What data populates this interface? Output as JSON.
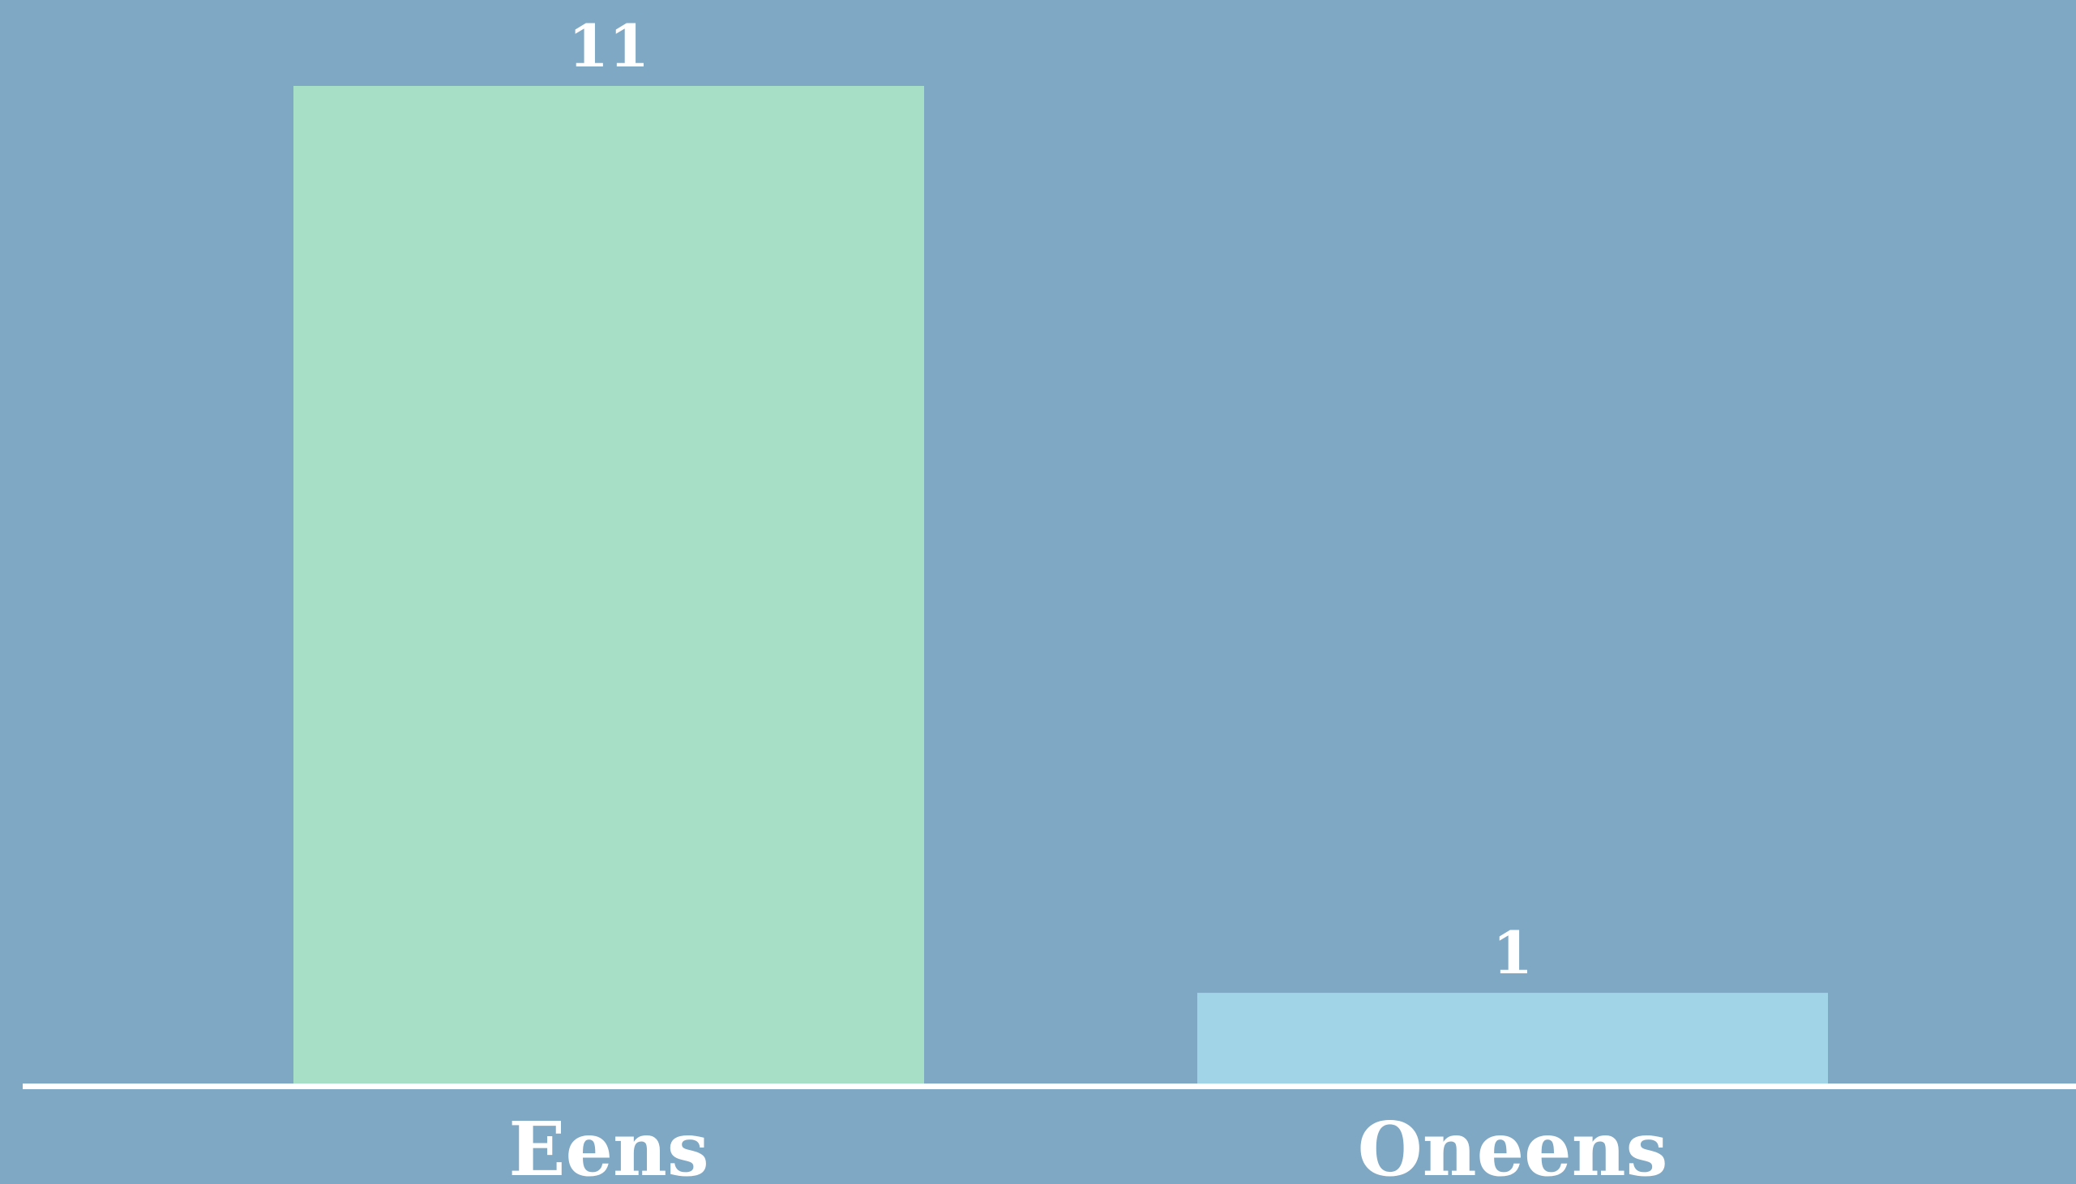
{
  "chart_data": {
    "type": "bar",
    "categories": [
      "Eens",
      "Oneens"
    ],
    "values": [
      11,
      1
    ],
    "colors": [
      "#a6dec6",
      "#a0d4e6"
    ]
  }
}
